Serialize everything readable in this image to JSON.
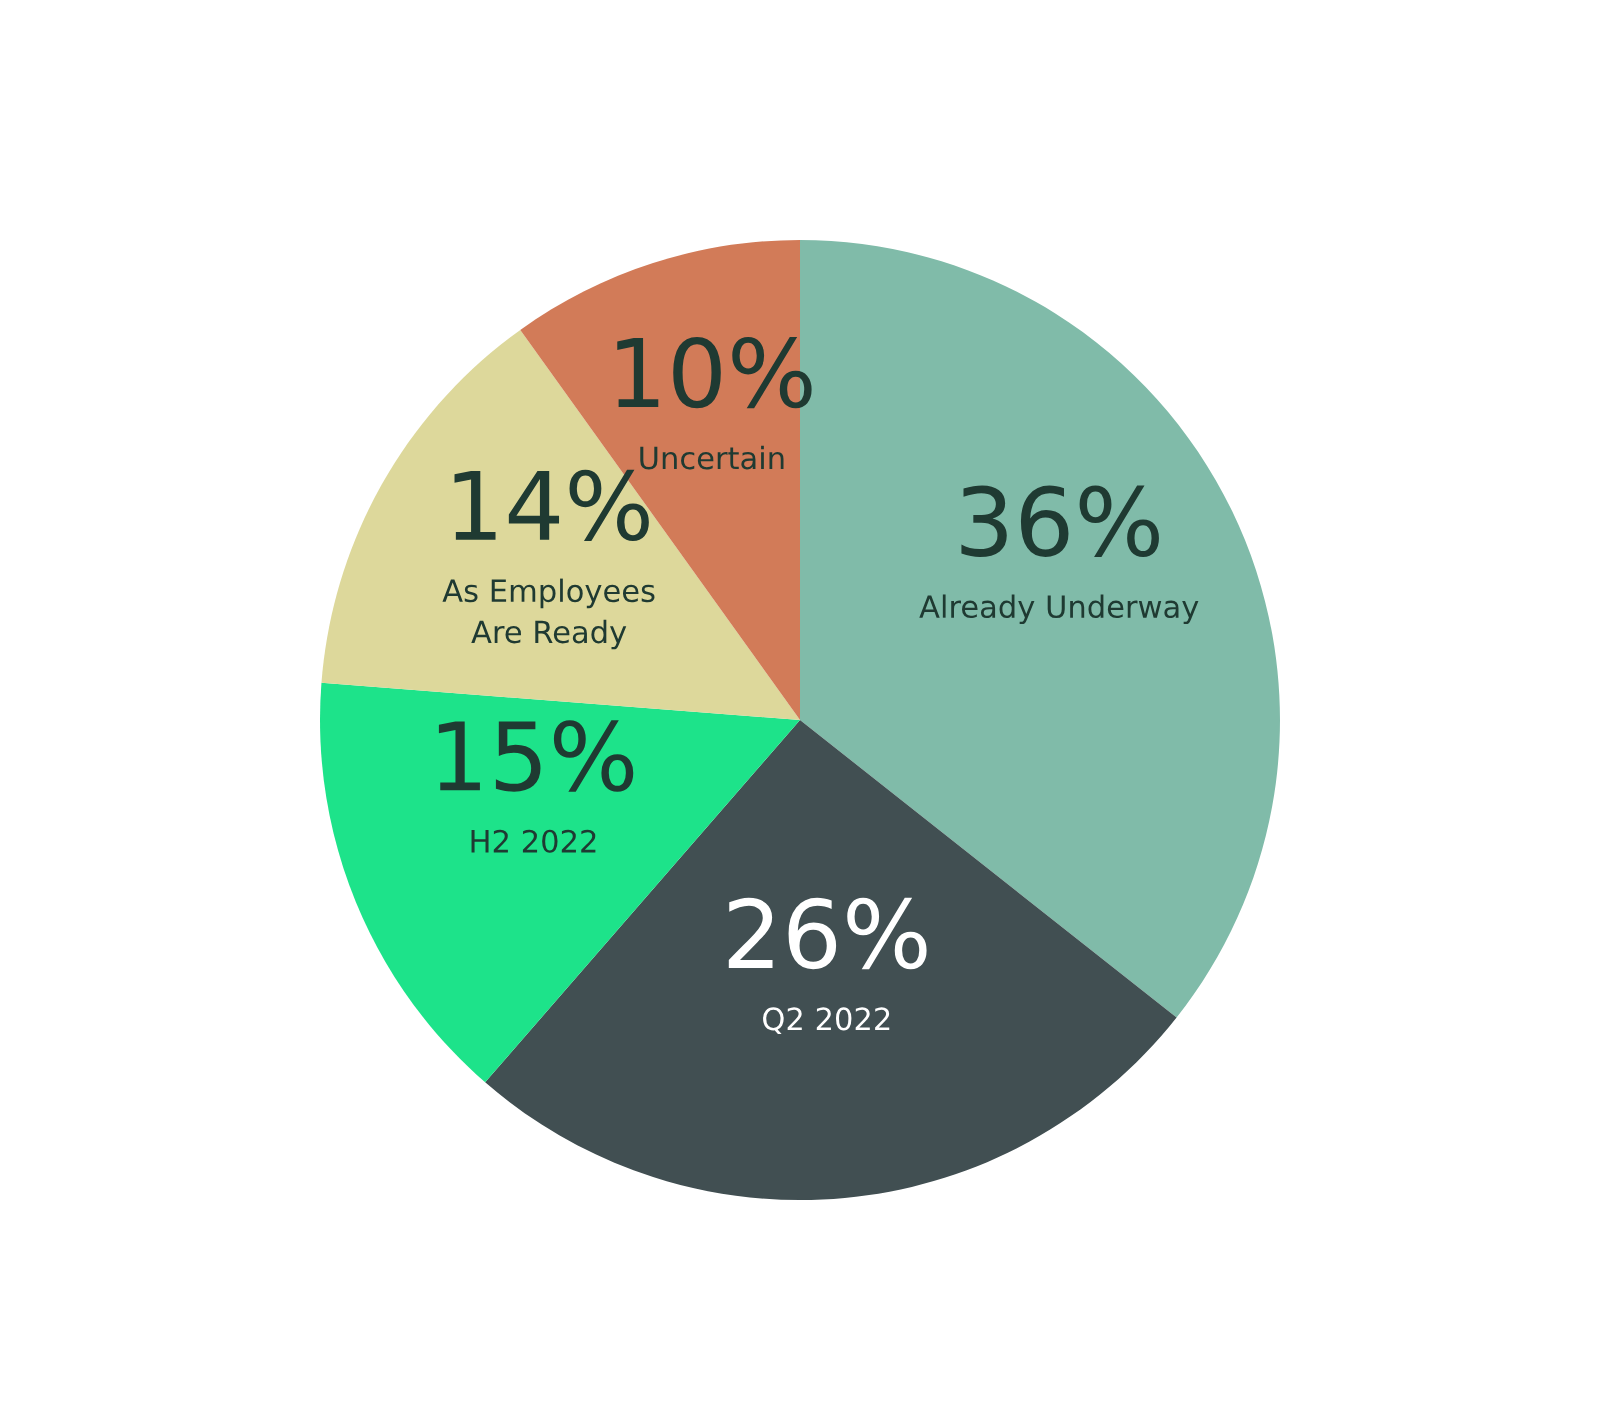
{
  "chart_data": {
    "type": "pie",
    "categories": [
      "Already Underway",
      "Q2 2022",
      "H2 2022",
      "As Employees\nAre Ready",
      "Uncertain"
    ],
    "values": [
      36,
      26,
      15,
      14,
      10
    ],
    "value_labels": [
      "36%",
      "26%",
      "15%",
      "14%",
      "10%"
    ],
    "colors": [
      "#80bba9",
      "#414f52",
      "#1de38a",
      "#ddd89b",
      "#d27b58"
    ]
  }
}
